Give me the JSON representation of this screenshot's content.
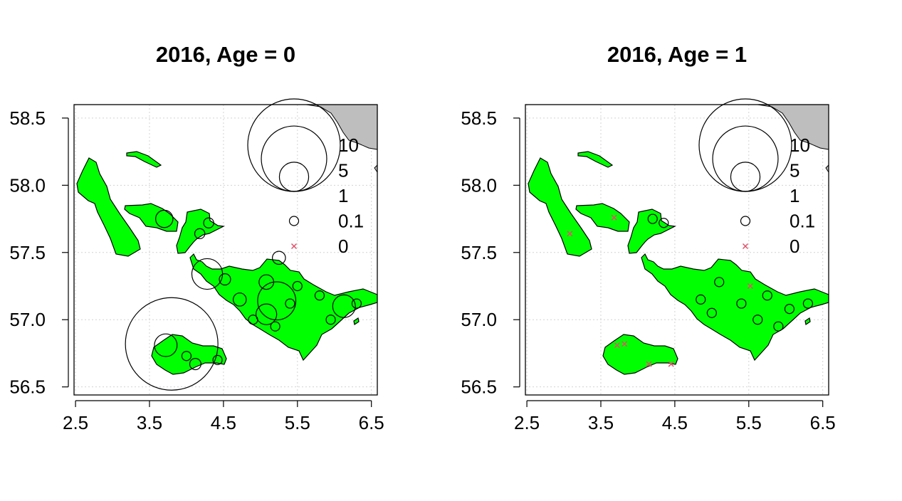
{
  "panels": [
    {
      "title": "2016, Age = 0",
      "legend": [
        {
          "label": "10",
          "value": 10
        },
        {
          "label": "5",
          "value": 5
        },
        {
          "label": "1",
          "value": 1
        },
        {
          "label": "0.1",
          "value": 0.1
        },
        {
          "label": "0",
          "value": 0
        }
      ],
      "points": [
        {
          "lon": 3.8,
          "lat": 56.82,
          "value": 10
        },
        {
          "lon": 3.72,
          "lat": 56.81,
          "value": 0.6
        },
        {
          "lon": 4.28,
          "lat": 57.34,
          "value": 1.1
        },
        {
          "lon": 5.22,
          "lat": 57.14,
          "value": 1.7
        },
        {
          "lon": 5.08,
          "lat": 57.04,
          "value": 0.5
        },
        {
          "lon": 6.13,
          "lat": 57.1,
          "value": 0.6
        },
        {
          "lon": 3.7,
          "lat": 57.75,
          "value": 0.35
        },
        {
          "lon": 4.52,
          "lat": 57.3,
          "value": 0.15
        },
        {
          "lon": 4.72,
          "lat": 57.15,
          "value": 0.2
        },
        {
          "lon": 5.08,
          "lat": 57.28,
          "value": 0.25
        },
        {
          "lon": 5.25,
          "lat": 57.46,
          "value": 0.2
        },
        {
          "lon": 4.18,
          "lat": 57.64,
          "value": 0.12
        },
        {
          "lon": 4.3,
          "lat": 57.72,
          "value": 0.12
        },
        {
          "lon": 4.12,
          "lat": 56.67,
          "value": 0.15
        },
        {
          "lon": 5.5,
          "lat": 57.25,
          "value": 0.1
        },
        {
          "lon": 5.2,
          "lat": 56.95,
          "value": 0.1
        },
        {
          "lon": 5.95,
          "lat": 57.0,
          "value": 0.1
        },
        {
          "lon": 6.3,
          "lat": 57.12,
          "value": 0.1
        },
        {
          "lon": 4.0,
          "lat": 56.73,
          "value": 0.1
        },
        {
          "lon": 4.42,
          "lat": 56.7,
          "value": 0.1
        },
        {
          "lon": 5.4,
          "lat": 57.12,
          "value": 0.1
        },
        {
          "lon": 5.8,
          "lat": 57.18,
          "value": 0.1
        },
        {
          "lon": 4.9,
          "lat": 57.0,
          "value": 0.1
        }
      ]
    },
    {
      "title": "2016, Age = 1",
      "legend": [
        {
          "label": "10",
          "value": 10
        },
        {
          "label": "5",
          "value": 5
        },
        {
          "label": "1",
          "value": 1
        },
        {
          "label": "0.1",
          "value": 0.1
        },
        {
          "label": "0",
          "value": 0
        }
      ],
      "points": [
        {
          "lon": 3.08,
          "lat": 57.64,
          "value": 0
        },
        {
          "lon": 3.68,
          "lat": 57.76,
          "value": 0
        },
        {
          "lon": 5.52,
          "lat": 57.25,
          "value": 0
        },
        {
          "lon": 3.72,
          "lat": 56.81,
          "value": 0
        },
        {
          "lon": 3.82,
          "lat": 56.82,
          "value": 0
        },
        {
          "lon": 4.15,
          "lat": 56.67,
          "value": 0
        },
        {
          "lon": 4.45,
          "lat": 56.67,
          "value": 0
        },
        {
          "lon": 4.2,
          "lat": 57.75,
          "value": 0.1
        },
        {
          "lon": 4.35,
          "lat": 57.72,
          "value": 0.1
        },
        {
          "lon": 5.1,
          "lat": 57.28,
          "value": 0.1
        },
        {
          "lon": 4.85,
          "lat": 57.15,
          "value": 0.1
        },
        {
          "lon": 5.75,
          "lat": 57.18,
          "value": 0.1
        },
        {
          "lon": 6.05,
          "lat": 57.08,
          "value": 0.1
        },
        {
          "lon": 5.4,
          "lat": 57.12,
          "value": 0.1
        },
        {
          "lon": 5.62,
          "lat": 57.0,
          "value": 0.1
        },
        {
          "lon": 6.3,
          "lat": 57.12,
          "value": 0.1
        },
        {
          "lon": 5.0,
          "lat": 57.05,
          "value": 0.1
        },
        {
          "lon": 5.9,
          "lat": 56.95,
          "value": 0.1
        }
      ]
    }
  ],
  "axes": {
    "x_ticks": [
      "2.5",
      "3.5",
      "4.5",
      "5.5",
      "6.5"
    ],
    "y_ticks": [
      "56.5",
      "57.0",
      "57.5",
      "58.0",
      "58.5"
    ],
    "xlim": [
      2.48,
      6.58
    ],
    "ylim": [
      56.44,
      58.6
    ],
    "grid": true,
    "grid_style": "dotted"
  },
  "colors": {
    "land": "#00ff00",
    "coast": "#bebebe",
    "zero_marker": "#df536b",
    "grid": "#d3d3d3",
    "circle": "#000000"
  },
  "legend_placement": "top-right"
}
